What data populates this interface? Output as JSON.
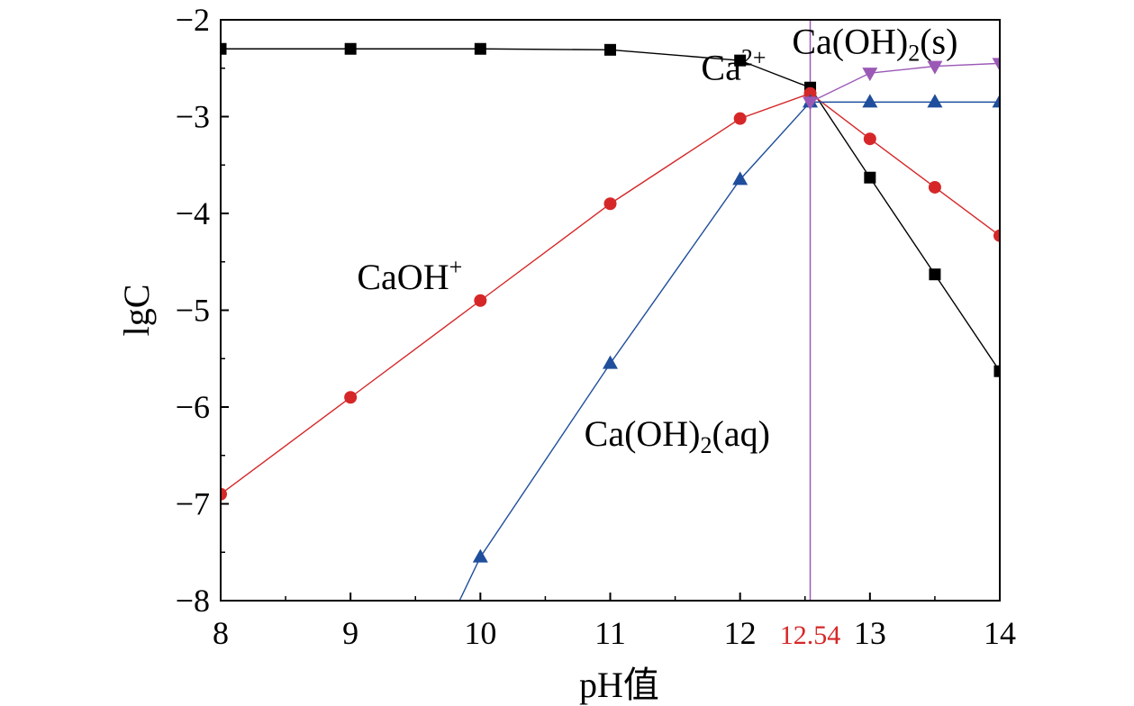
{
  "chart_data": {
    "type": "line",
    "xlabel": "pH值",
    "ylabel": "lgC",
    "xlim": [
      8,
      14
    ],
    "ylim": [
      -8,
      -2
    ],
    "x_ticks": [
      "8",
      "9",
      "10",
      "11",
      "12",
      "13",
      "14"
    ],
    "y_ticks": [
      "−8",
      "−7",
      "−6",
      "−5",
      "−4",
      "−3",
      "−2"
    ],
    "grid": false,
    "series": [
      {
        "name_parts": [
          {
            "t": "Ca"
          },
          {
            "t": "2+",
            "sup": true
          }
        ],
        "color": "#000000",
        "marker": "square",
        "x": [
          8,
          9,
          10,
          11,
          12,
          12.54,
          13,
          13.5,
          14
        ],
        "y": [
          -2.3,
          -2.3,
          -2.3,
          -2.31,
          -2.42,
          -2.7,
          -3.63,
          -4.63,
          -5.63
        ]
      },
      {
        "name_parts": [
          {
            "t": "CaOH"
          },
          {
            "t": "+",
            "sup": true
          }
        ],
        "color": "#d62728",
        "marker": "circle",
        "x": [
          8,
          9,
          10,
          11,
          12,
          12.54,
          13,
          13.5,
          14
        ],
        "y": [
          -6.9,
          -5.9,
          -4.9,
          -3.9,
          -3.02,
          -2.76,
          -3.23,
          -3.73,
          -4.23
        ]
      },
      {
        "name_parts": [
          {
            "t": "Ca(OH)"
          },
          {
            "t": "2",
            "sub": true
          },
          {
            "t": "(aq)"
          }
        ],
        "color": "#1f4e9c",
        "marker": "triangle-up",
        "line_start": [
          9.75,
          -8.25
        ],
        "x": [
          10,
          11,
          12,
          12.54,
          13,
          13.5,
          14
        ],
        "y": [
          -7.55,
          -5.55,
          -3.65,
          -2.85,
          -2.85,
          -2.85,
          -2.85
        ]
      },
      {
        "name_parts": [
          {
            "t": "Ca(OH)"
          },
          {
            "t": "2",
            "sub": true
          },
          {
            "t": "(s)"
          }
        ],
        "color": "#9b59b6",
        "marker": "triangle-down",
        "x": [
          12.54,
          13,
          13.5,
          14
        ],
        "y": [
          -2.85,
          -2.55,
          -2.48,
          -2.45
        ]
      }
    ],
    "annotations": [
      {
        "series": 0,
        "x": 11.7,
        "y": -2.62
      },
      {
        "series": 1,
        "x": 9.05,
        "y": -4.78
      },
      {
        "series": 2,
        "x": 10.8,
        "y": -6.4
      },
      {
        "series": 3,
        "x": 12.4,
        "y": -2.35
      }
    ],
    "vline": {
      "x": 12.54,
      "label": "12.54",
      "color": "#9b59b6",
      "label_color": "#d62728"
    }
  }
}
